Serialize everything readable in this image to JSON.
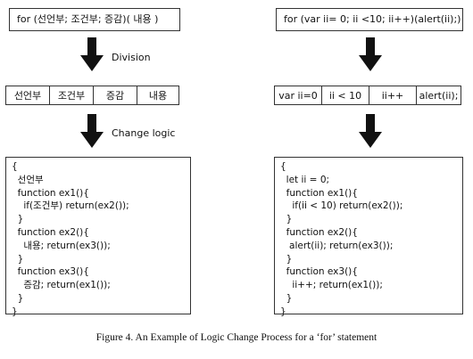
{
  "left": {
    "top_text": "for (선언부; 조건부; 증감)( 내용 )",
    "arrow1_label": "Division",
    "split": [
      "선언부",
      "조건부",
      "증감",
      "내용"
    ],
    "arrow2_label": "Change logic",
    "code": [
      "{",
      "  선언부",
      "  function ex1(){",
      "    if(조건부) return(ex2());",
      "  }",
      "  function ex2(){",
      "    내용; return(ex3());",
      "  }",
      "  function ex3(){",
      "    증감; return(ex1());",
      "  }",
      "}"
    ]
  },
  "right": {
    "top_text": "for (var ii= 0; ii <10; ii++)(alert(ii);)",
    "split": [
      "var ii=0",
      "ii < 10",
      "ii++",
      "alert(ii);"
    ],
    "code": [
      "{",
      "  let ii = 0;",
      "  function ex1(){",
      "    if(ii < 10) return(ex2());",
      "  }",
      "  function ex2(){",
      "   alert(ii); return(ex3());",
      "  }",
      "  function ex3(){",
      "    ii++; return(ex1());",
      "  }",
      "}"
    ]
  },
  "caption": "Figure 4. An Example of Logic Change Process for a ‘for’ statement"
}
